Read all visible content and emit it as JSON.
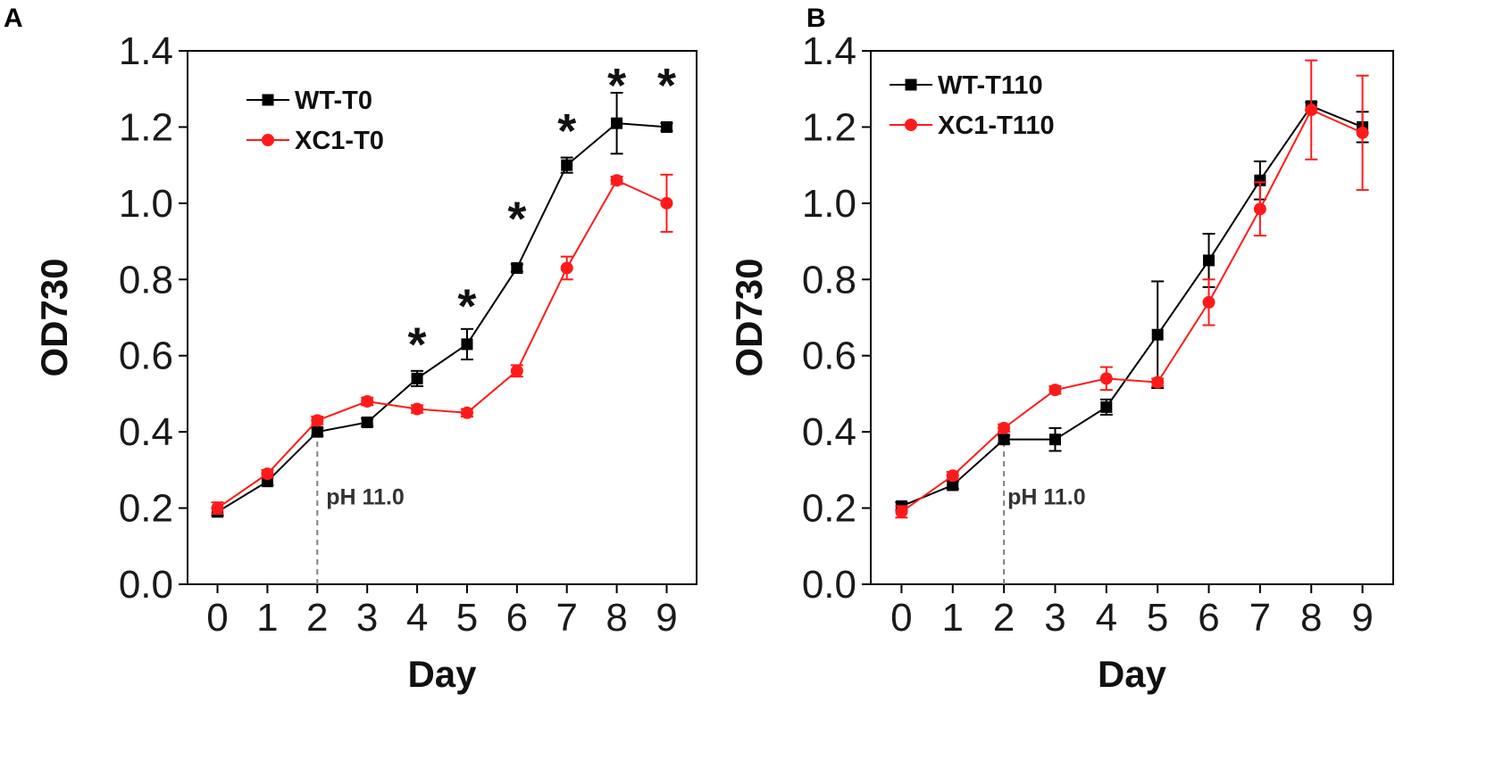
{
  "chart_data": [
    {
      "type": "line",
      "panel_label": "A",
      "xlabel": "Day",
      "ylabel": "OD730",
      "xlim": [
        -0.6,
        9.6
      ],
      "ylim": [
        0.0,
        1.4
      ],
      "x_ticks": [
        0,
        1,
        2,
        3,
        4,
        5,
        6,
        7,
        8,
        9
      ],
      "x_tick_labels": [
        "0",
        "1",
        "2",
        "3",
        "4",
        "5",
        "6",
        "7",
        "8",
        "9"
      ],
      "y_ticks": [
        0.0,
        0.2,
        0.4,
        0.6,
        0.8,
        1.0,
        1.2,
        1.4
      ],
      "y_tick_labels": [
        "0.0",
        "0.2",
        "0.4",
        "0.6",
        "0.8",
        "1.0",
        "1.2",
        "1.4"
      ],
      "x": [
        0,
        1,
        2,
        3,
        4,
        5,
        6,
        7,
        8,
        9
      ],
      "series": [
        {
          "name": "WT-T0",
          "color": "#000000",
          "marker": "square",
          "values": [
            0.19,
            0.27,
            0.4,
            0.425,
            0.54,
            0.63,
            0.83,
            1.1,
            1.21,
            1.2
          ],
          "errors": [
            0.01,
            0.01,
            0.01,
            0.01,
            0.02,
            0.04,
            0.01,
            0.02,
            0.08,
            0.01
          ]
        },
        {
          "name": "XC1-T0",
          "color": "#ff1a1a",
          "marker": "circle",
          "values": [
            0.2,
            0.29,
            0.43,
            0.48,
            0.46,
            0.45,
            0.56,
            0.83,
            1.06,
            1.0
          ],
          "errors": [
            0.015,
            0.01,
            0.01,
            0.01,
            0.01,
            0.01,
            0.015,
            0.03,
            0.01,
            0.075
          ]
        }
      ],
      "significance": {
        "marker": "*",
        "x": [
          4,
          5,
          6,
          7,
          8,
          9
        ],
        "y": [
          0.65,
          0.75,
          0.98,
          1.21,
          1.33,
          1.33
        ]
      },
      "annotation": {
        "text": "pH  11.0",
        "x": 2,
        "y": 0.21,
        "line_from": 0.0,
        "line_to": 0.4
      },
      "legend_position": "top-left"
    },
    {
      "type": "line",
      "panel_label": "B",
      "xlabel": "Day",
      "ylabel": "OD730",
      "xlim": [
        -0.6,
        9.6
      ],
      "ylim": [
        0.0,
        1.4
      ],
      "x_ticks": [
        0,
        1,
        2,
        3,
        4,
        5,
        6,
        7,
        8,
        9
      ],
      "x_tick_labels": [
        "0",
        "1",
        "2",
        "3",
        "4",
        "5",
        "6",
        "7",
        "8",
        "9"
      ],
      "y_ticks": [
        0.0,
        0.2,
        0.4,
        0.6,
        0.8,
        1.0,
        1.2,
        1.4
      ],
      "y_tick_labels": [
        "0.0",
        "0.2",
        "0.4",
        "0.6",
        "0.8",
        "1.0",
        "1.2",
        "1.4"
      ],
      "x": [
        0,
        1,
        2,
        3,
        4,
        5,
        6,
        7,
        8,
        9
      ],
      "series": [
        {
          "name": "WT-T110",
          "color": "#000000",
          "marker": "square",
          "values": [
            0.205,
            0.26,
            0.38,
            0.38,
            0.465,
            0.655,
            0.85,
            1.06,
            1.255,
            1.2
          ],
          "errors": [
            0.01,
            0.01,
            0.01,
            0.03,
            0.02,
            0.14,
            0.07,
            0.05,
            0.01,
            0.04
          ]
        },
        {
          "name": "XC1-T110",
          "color": "#ff1a1a",
          "marker": "circle",
          "values": [
            0.19,
            0.285,
            0.41,
            0.51,
            0.54,
            0.53,
            0.74,
            0.985,
            1.245,
            1.185
          ],
          "errors": [
            0.015,
            0.01,
            0.01,
            0.01,
            0.03,
            0.01,
            0.06,
            0.07,
            0.13,
            0.15
          ]
        }
      ],
      "annotation": {
        "text": "pH  11.0",
        "x": 2,
        "y": 0.21,
        "line_from": 0.0,
        "line_to": 0.38
      },
      "legend_position": "top-left"
    }
  ]
}
